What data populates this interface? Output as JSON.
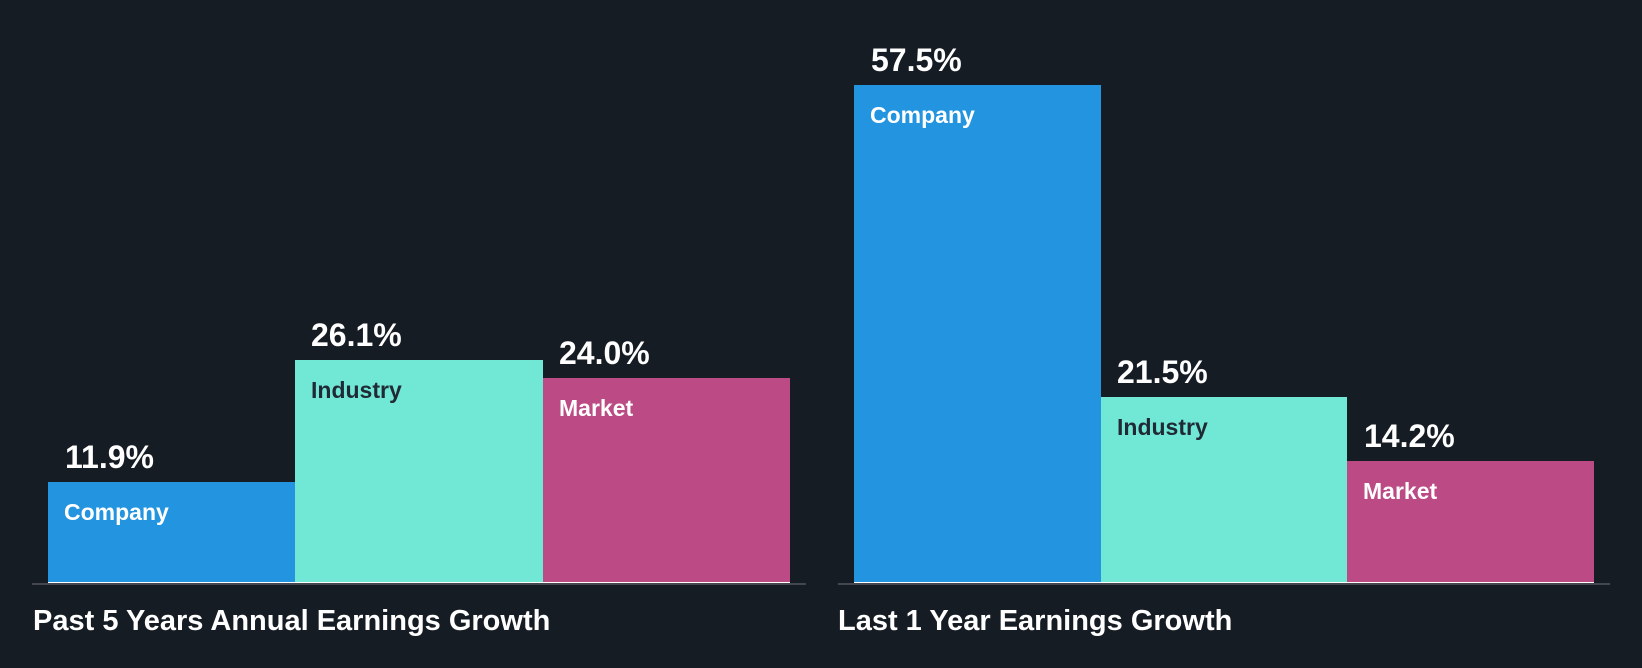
{
  "colors": {
    "background": "#161c24",
    "company": "#2394df",
    "industry": "#71e7d6",
    "market": "#bb4a85",
    "axis": "#44474f"
  },
  "chart_data": [
    {
      "type": "bar",
      "title": "Past 5 Years Annual Earnings Growth",
      "categories": [
        "Company",
        "Industry",
        "Market"
      ],
      "values": [
        11.9,
        26.1,
        24.0
      ],
      "value_labels": [
        "11.9%",
        "26.1%",
        "24.0%"
      ],
      "xlabel": "",
      "ylabel": "",
      "unit": "%",
      "grid": false,
      "legend": "none (labels inside bars)"
    },
    {
      "type": "bar",
      "title": "Last 1 Year Earnings Growth",
      "categories": [
        "Company",
        "Industry",
        "Market"
      ],
      "values": [
        57.5,
        21.5,
        14.2
      ],
      "value_labels": [
        "57.5%",
        "21.5%",
        "14.2%"
      ],
      "xlabel": "",
      "ylabel": "",
      "unit": "%",
      "grid": false,
      "legend": "none (labels inside bars)"
    }
  ]
}
